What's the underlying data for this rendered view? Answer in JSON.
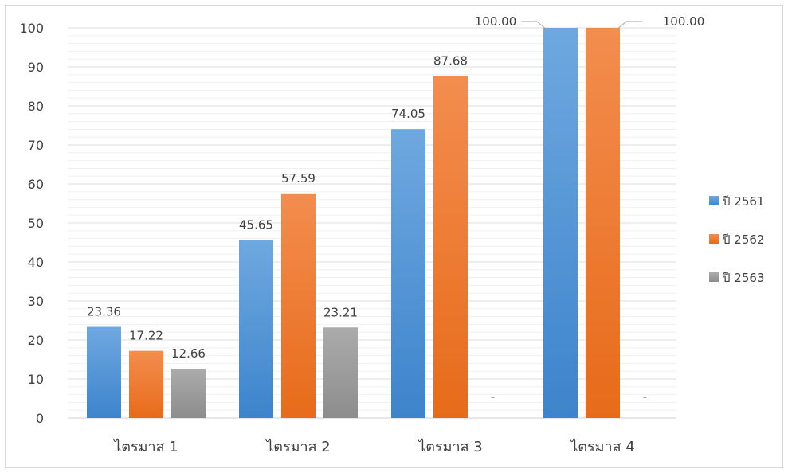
{
  "chart_data": {
    "type": "bar",
    "title": "",
    "xlabel": "",
    "ylabel": "",
    "ylim": [
      0,
      100
    ],
    "yticks": [
      0,
      10,
      20,
      30,
      40,
      50,
      60,
      70,
      80,
      90,
      100
    ],
    "grid": true,
    "legend_position": "right",
    "categories": [
      "ไตรมาส 1",
      "ไตรมาส 2",
      "ไตรมาส 3",
      "ไตรมาส 4"
    ],
    "series": [
      {
        "name": "ปี 2561",
        "color": "#4a90d9",
        "values": [
          23.36,
          45.65,
          74.05,
          100.0
        ],
        "labels": [
          "23.36",
          "45.65",
          "74.05",
          "100.00"
        ]
      },
      {
        "name": "ปี 2562",
        "color": "#f07a2a",
        "values": [
          17.22,
          57.59,
          87.68,
          100.0
        ],
        "labels": [
          "17.22",
          "57.59",
          "87.68",
          "100.00"
        ]
      },
      {
        "name": "ปี 2563",
        "color": "#9e9e9e",
        "values": [
          12.66,
          23.21,
          null,
          null
        ],
        "labels": [
          "12.66",
          "23.21",
          "-",
          "-"
        ]
      }
    ]
  }
}
